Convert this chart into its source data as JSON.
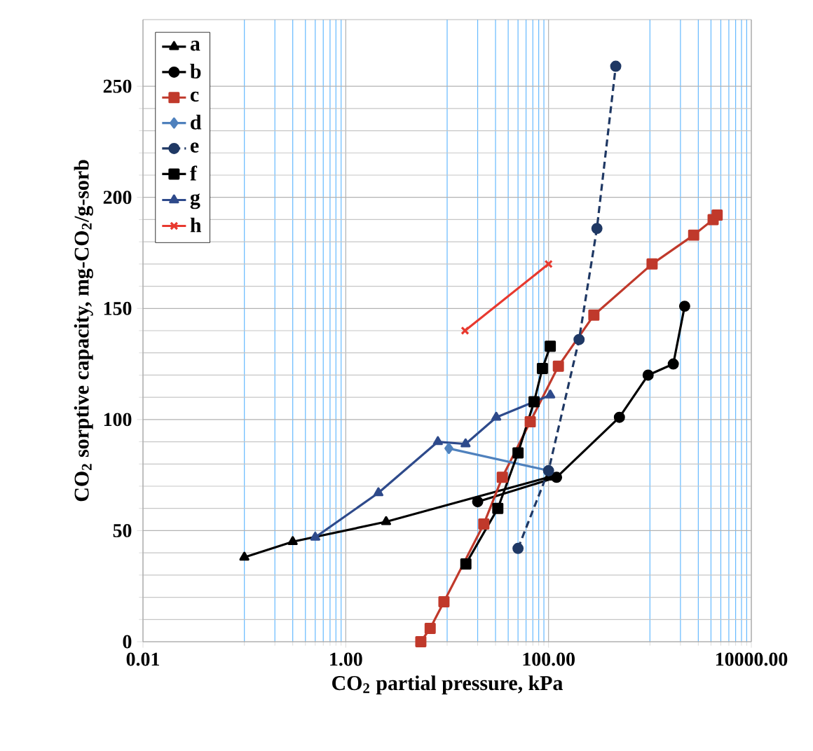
{
  "chart_data": {
    "type": "line",
    "xlabel": "CO$_{2}$ partial pressure, kPa",
    "ylabel": "CO$_{2}$ sorptive capacity, mg-CO$_{2}$/g-sorb",
    "log": "x",
    "xlim": [
      0.01,
      10000
    ],
    "ylim": [
      0,
      280
    ],
    "xticks": [
      0.01,
      {
        "value": 0.1,
        "label": null
      },
      {
        "value": 0.2,
        "label": null
      },
      {
        "value": 0.3,
        "label": null
      },
      {
        "value": 0.4,
        "label": null
      },
      {
        "value": 0.5,
        "label": null
      },
      {
        "value": 0.6,
        "label": null
      },
      {
        "value": 0.7,
        "label": null
      },
      {
        "value": 0.8,
        "label": null
      },
      {
        "value": 0.9,
        "label": null
      },
      {
        "value": 1,
        "label": "1.00"
      },
      {
        "value": 10,
        "label": null
      },
      {
        "value": 20,
        "label": null
      },
      {
        "value": 30,
        "label": null
      },
      {
        "value": 40,
        "label": null
      },
      {
        "value": 50,
        "label": null
      },
      {
        "value": 60,
        "label": null
      },
      {
        "value": 70,
        "label": null
      },
      {
        "value": 80,
        "label": null
      },
      {
        "value": 90,
        "label": null
      },
      {
        "value": 100,
        "label": "100.00"
      },
      {
        "value": 1000,
        "label": null
      },
      {
        "value": 2000,
        "label": null
      },
      {
        "value": 3000,
        "label": null
      },
      {
        "value": 4000,
        "label": null
      },
      {
        "value": 5000,
        "label": null
      },
      {
        "value": 6000,
        "label": null
      },
      {
        "value": 7000,
        "label": null
      },
      {
        "value": 8000,
        "label": null
      },
      {
        "value": 9000,
        "label": null
      },
      {
        "value": 10000,
        "label": "10000.00"
      }
    ],
    "yticks": [
      0,
      50,
      100,
      150,
      200,
      250
    ],
    "grid": true,
    "legend": "top left",
    "line_style": "solid",
    "series": [
      {
        "name": "a",
        "color": "#000000",
        "marker": "triangle",
        "x": [
          0.1,
          0.3,
          2.5,
          100
        ],
        "values": [
          38,
          45,
          54,
          74
        ]
      },
      {
        "name": "b",
        "color": "#000000",
        "marker": "circle",
        "x": [
          20,
          120,
          500,
          960,
          1700,
          2200
        ],
        "values": [
          63,
          74,
          101,
          120,
          125,
          151
        ]
      },
      {
        "name": "c",
        "color": "#c0392b",
        "marker": "square",
        "x": [
          5.5,
          6.8,
          9.3,
          23,
          35,
          66,
          125,
          280,
          1050,
          2700,
          4200,
          4600
        ],
        "values": [
          0,
          6,
          18,
          53,
          74,
          99,
          124,
          147,
          170,
          183,
          190,
          192
        ]
      },
      {
        "name": "d",
        "color": "#4f81bd",
        "marker": "diamond",
        "x": [
          10.4,
          100
        ],
        "values": [
          87,
          77
        ]
      },
      {
        "name": "e",
        "color": "#1f3864",
        "marker": "circle",
        "line_style": "dashed",
        "x": [
          50,
          100,
          200,
          300,
          460
        ],
        "values": [
          42,
          77,
          136,
          186,
          259
        ]
      },
      {
        "name": "f",
        "color": "#000000",
        "marker": "square",
        "x": [
          15.3,
          31.6,
          50,
          72,
          87,
          104
        ],
        "values": [
          35,
          60,
          85,
          108,
          123,
          133
        ]
      },
      {
        "name": "g",
        "color": "#2e4a8b",
        "marker": "triangle",
        "x": [
          0.5,
          2.1,
          8.1,
          15.2,
          30.5,
          104
        ],
        "values": [
          47,
          67,
          90,
          89,
          101,
          111
        ]
      },
      {
        "name": "h",
        "color": "#e8392f",
        "marker": "cross",
        "x": [
          15,
          100
        ],
        "values": [
          140,
          170
        ]
      }
    ]
  }
}
